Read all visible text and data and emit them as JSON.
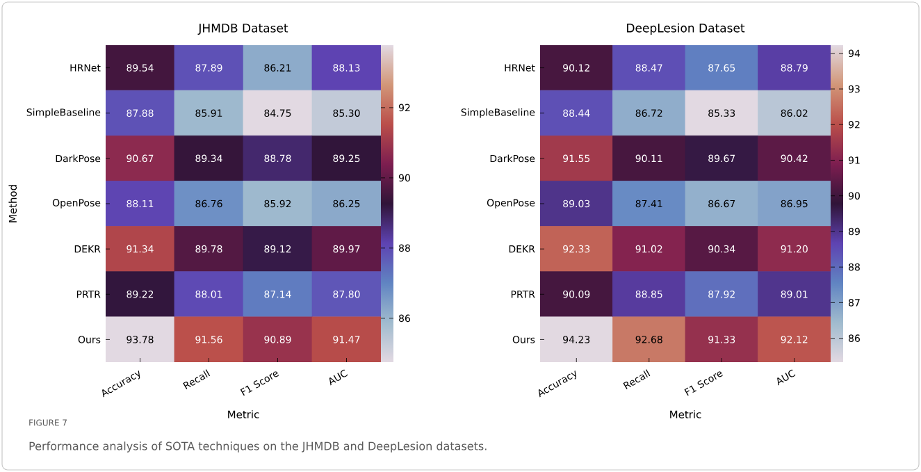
{
  "chart_data": [
    {
      "type": "heatmap",
      "title": "JHMDB Dataset",
      "xlabel": "Metric",
      "ylabel": "Method",
      "categories": [
        "Accuracy",
        "Recall",
        "F1 Score",
        "AUC"
      ],
      "y_categories": [
        "HRNet",
        "SimpleBaseline",
        "DarkPose",
        "OpenPose",
        "DEKR",
        "PRTR",
        "Ours"
      ],
      "cells": [
        [
          89.54,
          87.89,
          86.21,
          88.13
        ],
        [
          87.88,
          85.91,
          84.75,
          85.3
        ],
        [
          90.67,
          89.34,
          88.78,
          89.25
        ],
        [
          88.11,
          86.76,
          85.92,
          86.25
        ],
        [
          91.34,
          89.78,
          89.12,
          89.97
        ],
        [
          89.22,
          88.01,
          87.14,
          87.8
        ],
        [
          93.78,
          91.56,
          90.89,
          91.47
        ]
      ],
      "cell_labels": [
        [
          "89.54",
          "87.89",
          "86.21",
          "88.13"
        ],
        [
          "87.88",
          "85.91",
          "84.75",
          "85.30"
        ],
        [
          "90.67",
          "89.34",
          "88.78",
          "89.25"
        ],
        [
          "88.11",
          "86.76",
          "85.92",
          "86.25"
        ],
        [
          "91.34",
          "89.78",
          "89.12",
          "89.97"
        ],
        [
          "89.22",
          "88.01",
          "87.14",
          "87.80"
        ],
        [
          "93.78",
          "91.56",
          "90.89",
          "91.47"
        ]
      ],
      "clim": [
        84.75,
        93.78
      ],
      "cticks": [
        86,
        88,
        90,
        92
      ],
      "data_labels": true,
      "annotations": [
        "FIGURE 7",
        "Performance analysis of SOTA techniques on the JHMDB and DeepLesion datasets."
      ]
    },
    {
      "type": "heatmap",
      "title": "DeepLesion Dataset",
      "xlabel": "Metric",
      "categories": [
        "Accuracy",
        "Recall",
        "F1 Score",
        "AUC"
      ],
      "y_categories": [
        "HRNet",
        "SimpleBaseline",
        "DarkPose",
        "OpenPose",
        "DEKR",
        "PRTR",
        "Ours"
      ],
      "cells": [
        [
          90.12,
          88.47,
          87.65,
          88.79
        ],
        [
          88.44,
          86.72,
          85.33,
          86.02
        ],
        [
          91.55,
          90.11,
          89.67,
          90.42
        ],
        [
          89.03,
          87.41,
          86.67,
          86.95
        ],
        [
          92.33,
          91.02,
          90.34,
          91.2
        ],
        [
          90.09,
          88.85,
          87.92,
          89.01
        ],
        [
          94.23,
          92.68,
          91.33,
          92.12
        ]
      ],
      "cell_labels": [
        [
          "90.12",
          "88.47",
          "87.65",
          "88.79"
        ],
        [
          "88.44",
          "86.72",
          "85.33",
          "86.02"
        ],
        [
          "91.55",
          "90.11",
          "89.67",
          "90.42"
        ],
        [
          "89.03",
          "87.41",
          "86.67",
          "86.95"
        ],
        [
          "92.33",
          "91.02",
          "90.34",
          "91.20"
        ],
        [
          "90.09",
          "88.85",
          "87.92",
          "89.01"
        ],
        [
          "94.23",
          "92.68",
          "91.33",
          "92.12"
        ]
      ],
      "clim": [
        85.33,
        94.23
      ],
      "cticks": [
        86,
        87,
        88,
        89,
        90,
        91,
        92,
        93,
        94
      ],
      "data_labels": true
    }
  ]
}
